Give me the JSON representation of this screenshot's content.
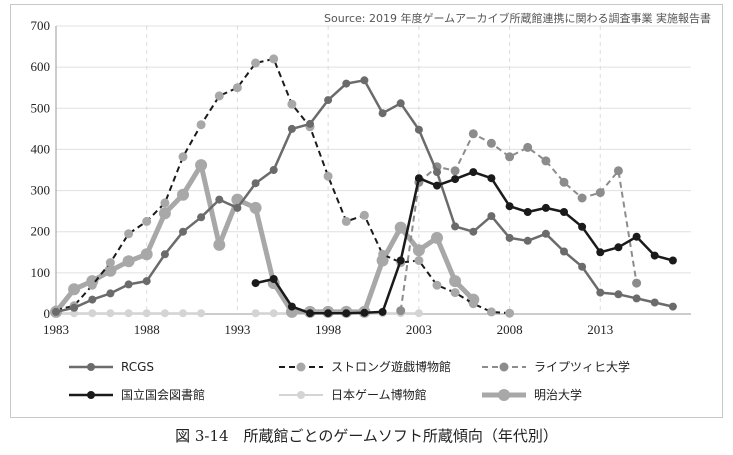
{
  "source_note": "Source: 2019 年度ゲームアーカイブ所蔵館連携に関わる調査事業 実施報告書",
  "caption": "図 3-14　所蔵館ごとのゲームソフト所蔵傾向（年代別）",
  "chart_data": {
    "type": "line",
    "title": "",
    "xlabel": "",
    "ylabel": "",
    "xlim": [
      1983,
      2018
    ],
    "ylim": [
      0,
      700
    ],
    "x_ticks": [
      "1983",
      "1988",
      "1993",
      "1998",
      "2003",
      "2008",
      "2013"
    ],
    "y_ticks": [
      "0",
      "100",
      "200",
      "300",
      "400",
      "500",
      "600",
      "700"
    ],
    "grid": "vertical dashed, horizontal solid",
    "legend_position": "bottom",
    "series": [
      {
        "name": "RCGS",
        "color": "#6b6b6b",
        "style": "solid",
        "points": [
          [
            1983,
            5
          ],
          [
            1984,
            15
          ],
          [
            1985,
            35
          ],
          [
            1986,
            50
          ],
          [
            1987,
            72
          ],
          [
            1988,
            80
          ],
          [
            1989,
            145
          ],
          [
            1990,
            200
          ],
          [
            1991,
            235
          ],
          [
            1992,
            278
          ],
          [
            1993,
            258
          ],
          [
            1994,
            318
          ],
          [
            1995,
            350
          ],
          [
            1996,
            450
          ],
          [
            1997,
            462
          ],
          [
            1998,
            520
          ],
          [
            1999,
            560
          ],
          [
            2000,
            568
          ],
          [
            2001,
            488
          ],
          [
            2002,
            512
          ],
          [
            2003,
            448
          ],
          [
            2004,
            345
          ],
          [
            2005,
            213
          ],
          [
            2006,
            200
          ],
          [
            2007,
            238
          ],
          [
            2008,
            185
          ],
          [
            2009,
            178
          ],
          [
            2010,
            195
          ],
          [
            2011,
            152
          ],
          [
            2012,
            115
          ],
          [
            2013,
            52
          ],
          [
            2014,
            48
          ],
          [
            2015,
            38
          ],
          [
            2016,
            28
          ],
          [
            2017,
            18
          ]
        ]
      },
      {
        "name": "ストロング遊戯博物館",
        "color": "#1a1a1a",
        "marker_color": "#a8a8a8",
        "style": "dashed",
        "points": [
          [
            1983,
            10
          ],
          [
            1984,
            20
          ],
          [
            1985,
            70
          ],
          [
            1986,
            125
          ],
          [
            1987,
            195
          ],
          [
            1988,
            225
          ],
          [
            1989,
            270
          ],
          [
            1990,
            382
          ],
          [
            1991,
            460
          ],
          [
            1992,
            530
          ],
          [
            1993,
            550
          ],
          [
            1994,
            610
          ],
          [
            1995,
            620
          ],
          [
            1996,
            510
          ],
          [
            1997,
            455
          ],
          [
            1998,
            335
          ],
          [
            1999,
            225
          ],
          [
            2000,
            240
          ],
          [
            2001,
            145
          ],
          [
            2002,
            125
          ],
          [
            2003,
            130
          ],
          [
            2004,
            70
          ],
          [
            2005,
            52
          ],
          [
            2006,
            25
          ],
          [
            2007,
            5
          ],
          [
            2008,
            2
          ]
        ]
      },
      {
        "name": "ライプツィヒ大学",
        "color": "#8c8c8c",
        "style": "dashed",
        "points": [
          [
            2002,
            8
          ],
          [
            2003,
            320
          ],
          [
            2004,
            358
          ],
          [
            2005,
            348
          ],
          [
            2006,
            438
          ],
          [
            2007,
            415
          ],
          [
            2008,
            382
          ],
          [
            2009,
            405
          ],
          [
            2010,
            372
          ],
          [
            2011,
            320
          ],
          [
            2012,
            282
          ],
          [
            2013,
            295
          ],
          [
            2014,
            348
          ],
          [
            2015,
            75
          ]
        ]
      },
      {
        "name": "国立国会図書館",
        "color": "#1a1a1a",
        "style": "solid",
        "points": [
          [
            1994,
            75
          ],
          [
            1995,
            85
          ],
          [
            1996,
            18
          ],
          [
            1997,
            2
          ],
          [
            1998,
            2
          ],
          [
            1999,
            2
          ],
          [
            2000,
            3
          ],
          [
            2001,
            5
          ],
          [
            2002,
            130
          ],
          [
            2003,
            330
          ],
          [
            2004,
            312
          ],
          [
            2005,
            328
          ],
          [
            2006,
            345
          ],
          [
            2007,
            330
          ],
          [
            2008,
            262
          ],
          [
            2009,
            248
          ],
          [
            2010,
            258
          ],
          [
            2011,
            248
          ],
          [
            2012,
            212
          ],
          [
            2013,
            150
          ],
          [
            2014,
            162
          ],
          [
            2015,
            188
          ],
          [
            2016,
            142
          ],
          [
            2017,
            130
          ]
        ]
      },
      {
        "name": "日本ゲーム博物館",
        "color": "#d4d4d4",
        "style": "solid",
        "points": [
          [
            1983,
            2
          ],
          [
            1984,
            2
          ],
          [
            1985,
            2
          ],
          [
            1986,
            2
          ],
          [
            1987,
            2
          ],
          [
            1988,
            2
          ],
          [
            1989,
            2
          ],
          [
            1990,
            2
          ],
          [
            1991,
            2
          ],
          [
            1992,
            null
          ],
          [
            1993,
            null
          ],
          [
            1994,
            2
          ],
          [
            1995,
            2
          ],
          [
            1996,
            2
          ],
          [
            1997,
            2
          ],
          [
            1998,
            2
          ],
          [
            1999,
            2
          ],
          [
            2000,
            2
          ],
          [
            2001,
            2
          ],
          [
            2002,
            2
          ],
          [
            2003,
            2
          ]
        ]
      },
      {
        "name": "明治大学",
        "color": "#a8a8a8",
        "style": "thick",
        "points": [
          [
            1983,
            5
          ],
          [
            1984,
            60
          ],
          [
            1985,
            80
          ],
          [
            1986,
            105
          ],
          [
            1987,
            128
          ],
          [
            1988,
            145
          ],
          [
            1989,
            245
          ],
          [
            1990,
            290
          ],
          [
            1991,
            362
          ],
          [
            1992,
            168
          ],
          [
            1993,
            278
          ],
          [
            1994,
            258
          ],
          [
            1995,
            75
          ],
          [
            1996,
            5
          ],
          [
            1997,
            5
          ],
          [
            1998,
            5
          ],
          [
            1999,
            5
          ],
          [
            2000,
            5
          ],
          [
            2001,
            130
          ],
          [
            2002,
            210
          ],
          [
            2003,
            155
          ],
          [
            2004,
            185
          ],
          [
            2005,
            80
          ],
          [
            2006,
            35
          ]
        ]
      }
    ]
  }
}
